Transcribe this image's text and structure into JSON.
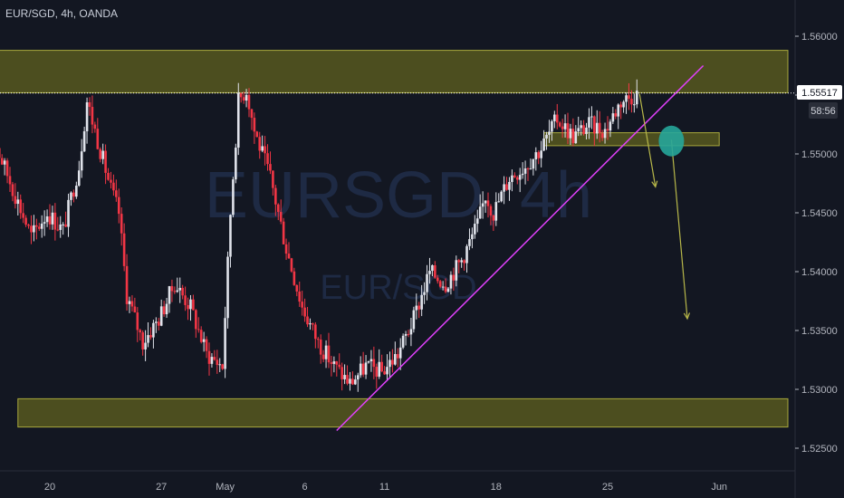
{
  "header": {
    "symbol_line": "EUR/SGD, 4h, OANDA"
  },
  "watermark": {
    "main": "EURSGD, 4h",
    "sub": "EUR/SGD"
  },
  "price_badge": {
    "value": "1.55517",
    "countdown": "58:56"
  },
  "colors": {
    "background": "#131722",
    "up": "#e0e3eb",
    "down": "#f23645",
    "zone": "#6b6b1e",
    "trendline": "#e040fb",
    "projection": "#b8b84a",
    "marker": "#26a69a"
  },
  "chart_data": {
    "type": "candlestick",
    "title": "EUR/SGD, 4h, OANDA",
    "x_ticks": [
      "20",
      "27",
      "May",
      "6",
      "11",
      "18",
      "25",
      "Jun"
    ],
    "y_ticks": [
      "1.56000",
      "1.55500",
      "1.55000",
      "1.54500",
      "1.54000",
      "1.53500",
      "1.53000",
      "1.52500"
    ],
    "ylim": [
      1.5245,
      1.5628
    ],
    "last_price": 1.55517,
    "grid": false,
    "zones": [
      {
        "name": "resistance",
        "from": 1.5552,
        "to": 1.5588,
        "x_start": "2020-04-16",
        "x_end": "2020-06-06"
      },
      {
        "name": "support-retest",
        "from": 1.5507,
        "to": 1.5518,
        "x_start": "2020-05-21",
        "x_end": "2020-06-01"
      },
      {
        "name": "support",
        "from": 1.5268,
        "to": 1.5292,
        "x_start": "2020-04-18",
        "x_end": "2020-06-06"
      }
    ],
    "trendline": {
      "start": [
        "2020-05-08",
        1.5265
      ],
      "end": [
        "2020-05-31",
        1.5575
      ]
    },
    "projections": [
      {
        "start": [
          "2020-05-27",
          1.5551
        ],
        "end": [
          "2020-05-28",
          1.5472
        ]
      },
      {
        "start": [
          "2020-05-29",
          1.5512
        ],
        "end": [
          "2020-05-30",
          1.536
        ]
      }
    ],
    "marker": {
      "date": "2020-05-29",
      "price": 1.5511
    },
    "price_path": [
      [
        "2020-04-16",
        1.554
      ],
      [
        "2020-04-17",
        1.55
      ],
      [
        "2020-04-18",
        1.5465
      ],
      [
        "2020-04-19",
        1.543
      ],
      [
        "2020-04-20",
        1.545
      ],
      [
        "2020-04-21",
        1.5435
      ],
      [
        "2020-04-22",
        1.549
      ],
      [
        "2020-04-22T12",
        1.5545
      ],
      [
        "2020-04-23",
        1.552
      ],
      [
        "2020-04-24",
        1.547
      ],
      [
        "2020-04-24T12",
        1.545
      ],
      [
        "2020-04-25",
        1.538
      ],
      [
        "2020-04-26",
        1.534
      ],
      [
        "2020-04-27",
        1.536
      ],
      [
        "2020-04-28",
        1.539
      ],
      [
        "2020-04-29",
        1.537
      ],
      [
        "2020-04-30",
        1.533
      ],
      [
        "2020-05-01",
        1.532
      ],
      [
        "2020-05-01T12",
        1.545
      ],
      [
        "2020-05-02",
        1.5545
      ],
      [
        "2020-05-02T12",
        1.5555
      ],
      [
        "2020-05-03",
        1.552
      ],
      [
        "2020-05-04",
        1.548
      ],
      [
        "2020-05-05",
        1.542
      ],
      [
        "2020-05-06",
        1.537
      ],
      [
        "2020-05-07",
        1.534
      ],
      [
        "2020-05-08",
        1.532
      ],
      [
        "2020-05-09",
        1.5305
      ],
      [
        "2020-05-10",
        1.532
      ],
      [
        "2020-05-11",
        1.5315
      ],
      [
        "2020-05-12",
        1.533
      ],
      [
        "2020-05-13",
        1.536
      ],
      [
        "2020-05-14",
        1.54
      ],
      [
        "2020-05-15",
        1.539
      ],
      [
        "2020-05-16",
        1.541
      ],
      [
        "2020-05-17",
        1.544
      ],
      [
        "2020-05-17T12",
        1.5465
      ],
      [
        "2020-05-18",
        1.545
      ],
      [
        "2020-05-19",
        1.548
      ],
      [
        "2020-05-20",
        1.549
      ],
      [
        "2020-05-21",
        1.5505
      ],
      [
        "2020-05-22",
        1.553
      ],
      [
        "2020-05-23",
        1.5515
      ],
      [
        "2020-05-24",
        1.5525
      ],
      [
        "2020-05-25",
        1.552
      ],
      [
        "2020-05-26",
        1.5545
      ],
      [
        "2020-05-27",
        1.5551
      ]
    ]
  }
}
